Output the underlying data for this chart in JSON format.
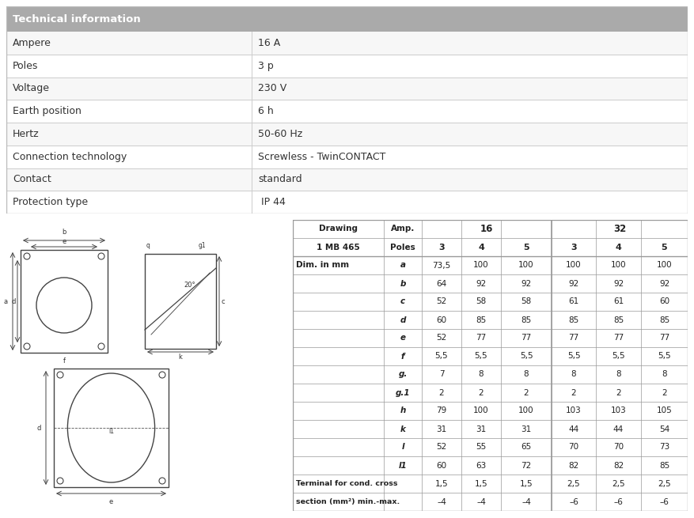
{
  "tech_info_header": "Technical information",
  "tech_rows": [
    [
      "Ampere",
      "16 A"
    ],
    [
      "Poles",
      "3 p"
    ],
    [
      "Voltage",
      "230 V"
    ],
    [
      "Earth position",
      "6 h"
    ],
    [
      "Hertz",
      "50-60 Hz"
    ],
    [
      "Connection technology",
      "Screwless - TwinCONTACT"
    ],
    [
      "Contact",
      "standard"
    ],
    [
      "Protection type",
      " IP 44"
    ]
  ],
  "header_bg": "#aaaaaa",
  "header_text_color": "#ffffff",
  "row_line_color": "#cccccc",
  "text_color": "#333333",
  "drawing_bg": "#cccccc",
  "dim_table_header1": "Drawing",
  "dim_table_header2": "1 MB 465",
  "dim_table_amp_label": "Amp.",
  "dim_table_poles_label": "Poles",
  "dim_table_amp16": "16",
  "dim_table_amp32": "32",
  "dim_table_poles": [
    "3",
    "4",
    "5",
    "3",
    "4",
    "5"
  ],
  "dim_label": "Dim. in mm",
  "dim_rows": [
    [
      "a",
      "73,5",
      "100",
      "100",
      "100",
      "100",
      "100"
    ],
    [
      "b",
      "64",
      "92",
      "92",
      "92",
      "92",
      "92"
    ],
    [
      "c",
      "52",
      "58",
      "58",
      "61",
      "61",
      "60"
    ],
    [
      "d",
      "60",
      "85",
      "85",
      "85",
      "85",
      "85"
    ],
    [
      "e",
      "52",
      "77",
      "77",
      "77",
      "77",
      "77"
    ],
    [
      "f",
      "5,5",
      "5,5",
      "5,5",
      "5,5",
      "5,5",
      "5,5"
    ],
    [
      "g.",
      "7",
      "8",
      "8",
      "8",
      "8",
      "8"
    ],
    [
      "g.1",
      "2",
      "2",
      "2",
      "2",
      "2",
      "2"
    ],
    [
      "h",
      "79",
      "100",
      "100",
      "103",
      "103",
      "105"
    ],
    [
      "k",
      "31",
      "31",
      "31",
      "44",
      "44",
      "54"
    ],
    [
      "l",
      "52",
      "55",
      "65",
      "70",
      "70",
      "73"
    ],
    [
      "l1",
      "60",
      "63",
      "72",
      "82",
      "82",
      "85"
    ]
  ],
  "terminal_label1": "Terminal for cond. cross",
  "terminal_label2": "section (mm²) min.-max.",
  "terminal_rows": [
    [
      "1,5",
      "1,5",
      "1,5",
      "2,5",
      "2,5",
      "2,5"
    ],
    [
      "–4",
      "–4",
      "–4",
      "–6",
      "–6",
      "–6"
    ]
  ]
}
